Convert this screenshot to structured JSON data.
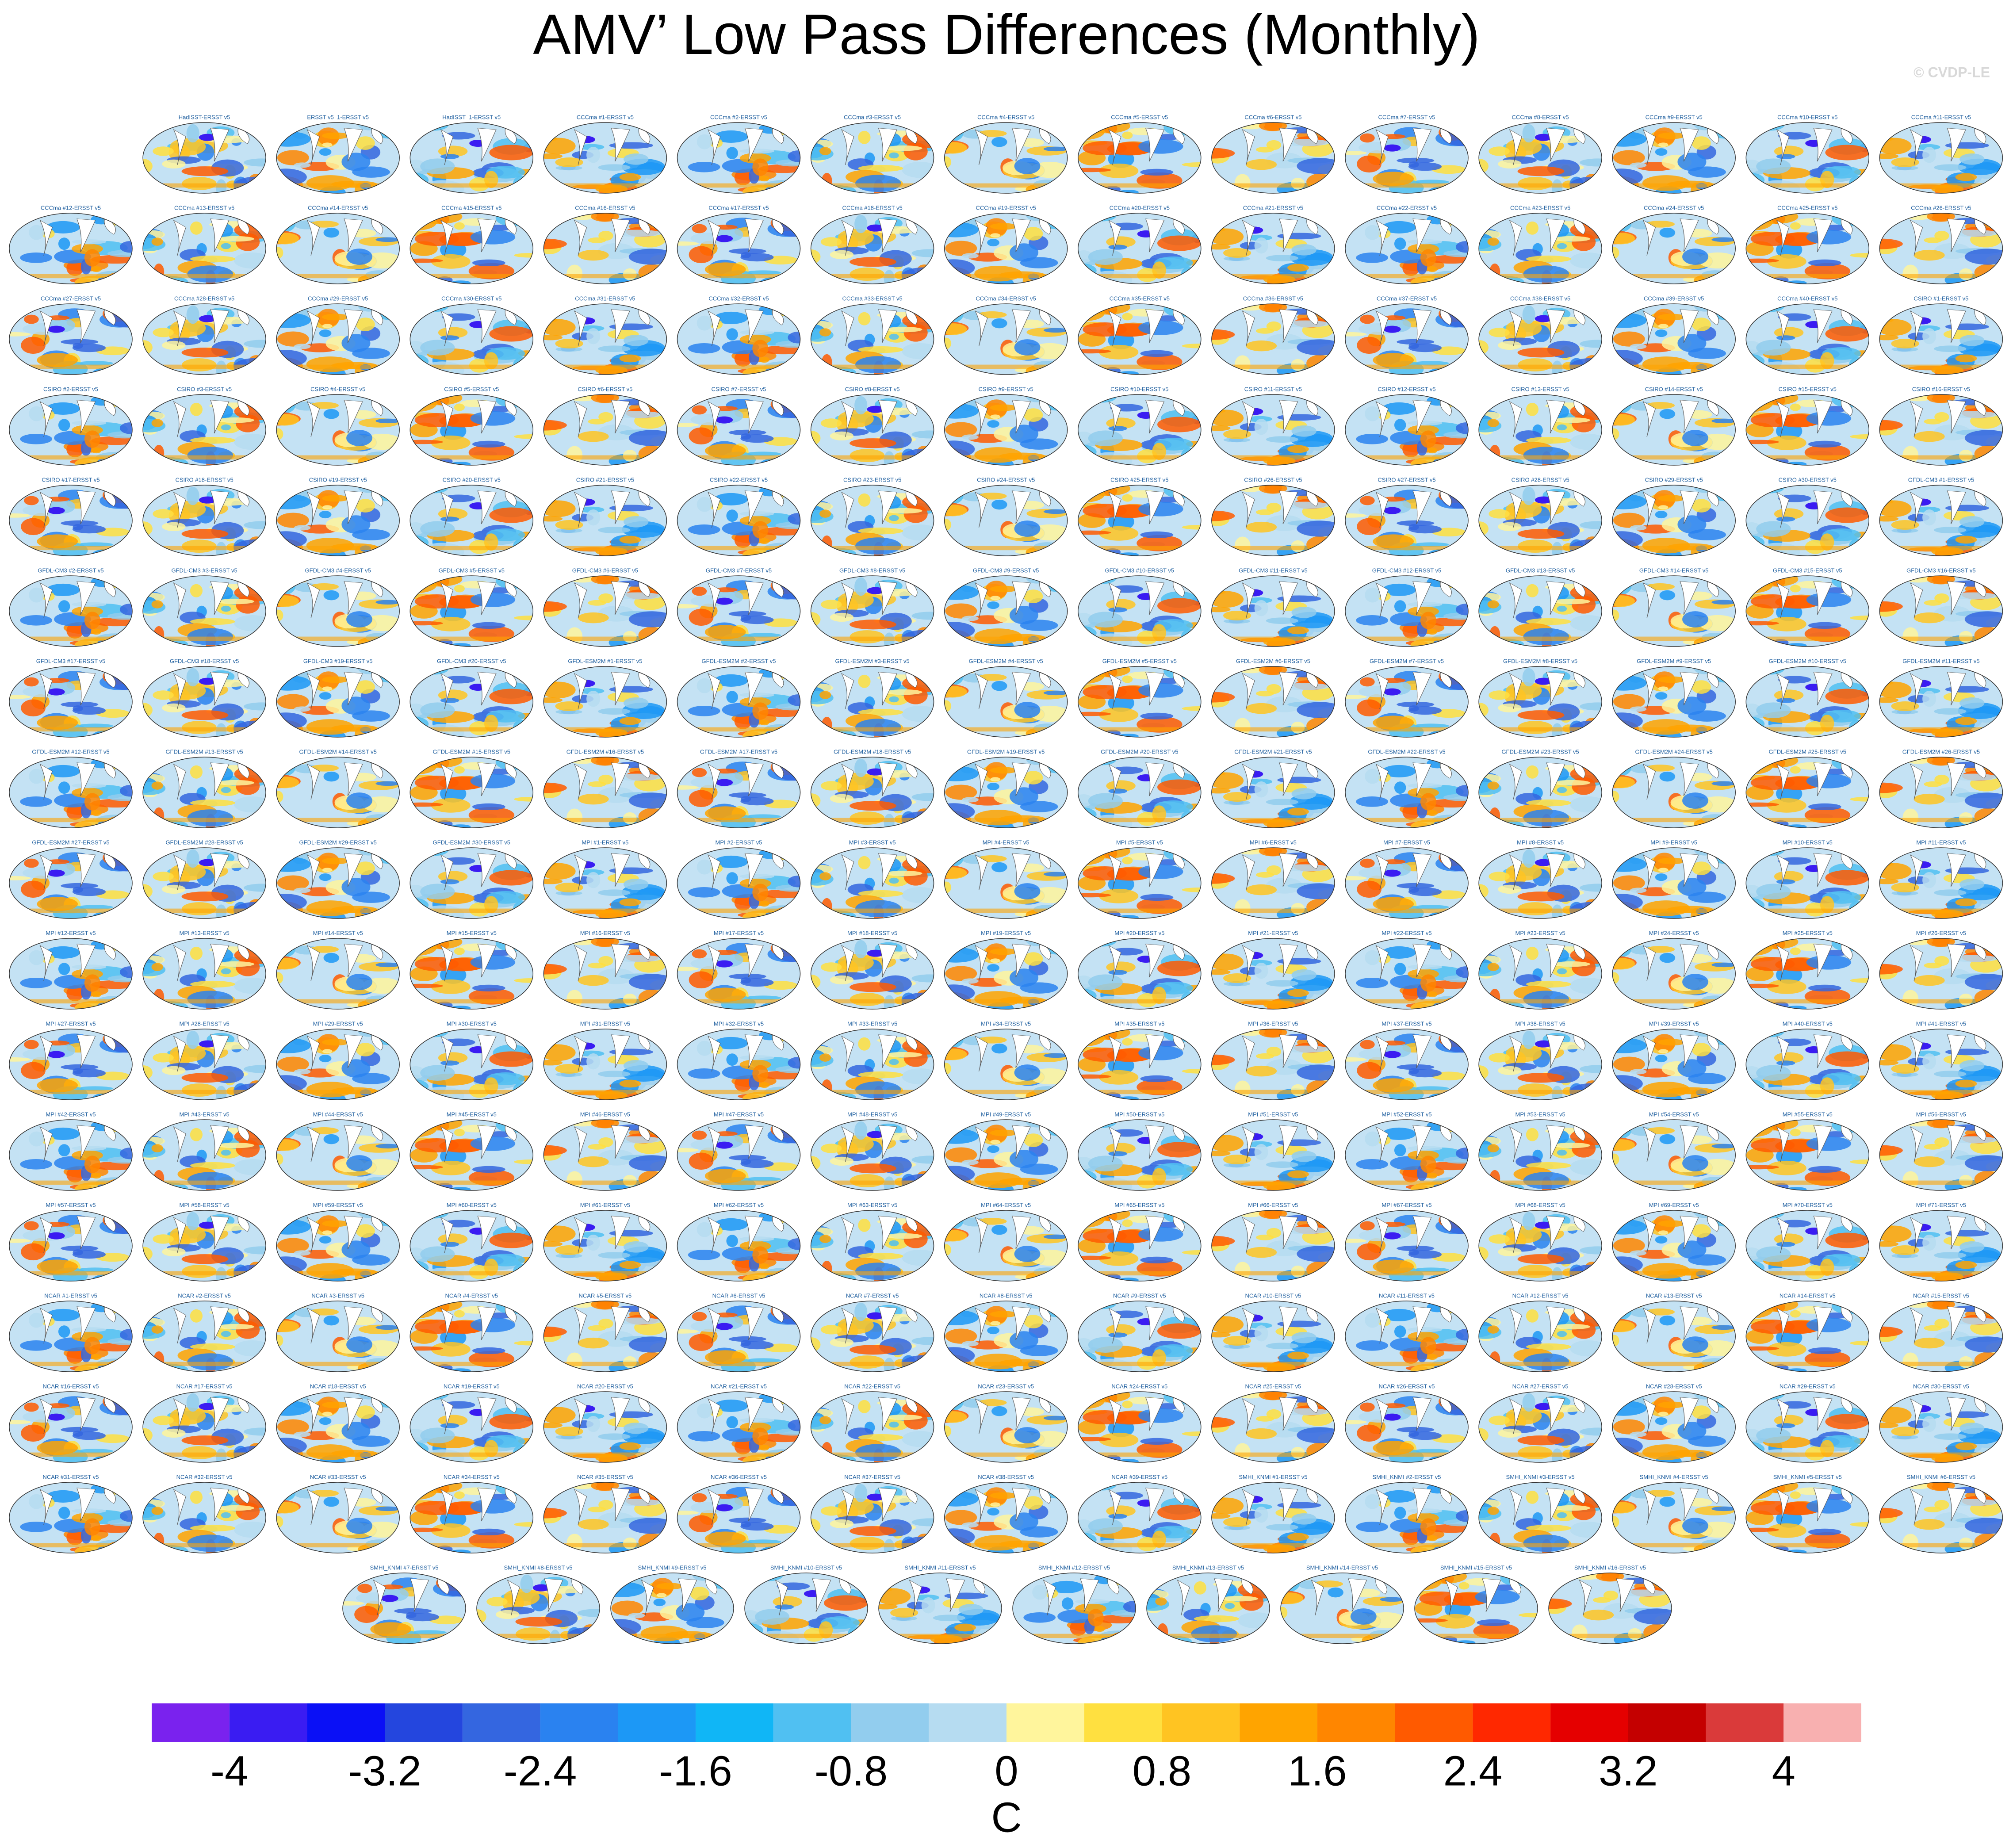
{
  "title": "AMV’ Low Pass Differences (Monthly)",
  "watermark": "© CVDP-LE",
  "panels": [
    "HadISST-ERSST v5",
    "ERSST v5_1-ERSST v5",
    "HadISST_1-ERSST v5",
    "CCCma #1-ERSST v5",
    "CCCma #2-ERSST v5",
    "CCCma #3-ERSST v5",
    "CCCma #4-ERSST v5",
    "CCCma #5-ERSST v5",
    "CCCma #6-ERSST v5",
    "CCCma #7-ERSST v5",
    "CCCma #8-ERSST v5",
    "CCCma #9-ERSST v5",
    "CCCma #10-ERSST v5",
    "CCCma #11-ERSST v5",
    "CCCma #12-ERSST v5",
    "CCCma #13-ERSST v5",
    "CCCma #14-ERSST v5",
    "CCCma #15-ERSST v5",
    "CCCma #16-ERSST v5",
    "CCCma #17-ERSST v5",
    "CCCma #18-ERSST v5",
    "CCCma #19-ERSST v5",
    "CCCma #20-ERSST v5",
    "CCCma #21-ERSST v5",
    "CCCma #22-ERSST v5",
    "CCCma #23-ERSST v5",
    "CCCma #24-ERSST v5",
    "CCCma #25-ERSST v5",
    "CCCma #26-ERSST v5",
    "CCCma #27-ERSST v5",
    "CCCma #28-ERSST v5",
    "CCCma #29-ERSST v5",
    "CCCma #30-ERSST v5",
    "CCCma #31-ERSST v5",
    "CCCma #32-ERSST v5",
    "CCCma #33-ERSST v5",
    "CCCma #34-ERSST v5",
    "CCCma #35-ERSST v5",
    "CCCma #36-ERSST v5",
    "CCCma #37-ERSST v5",
    "CCCma #38-ERSST v5",
    "CCCma #39-ERSST v5",
    "CCCma #40-ERSST v5",
    "CSIRO #1-ERSST v5",
    "CSIRO #2-ERSST v5",
    "CSIRO #3-ERSST v5",
    "CSIRO #4-ERSST v5",
    "CSIRO #5-ERSST v5",
    "CSIRO #6-ERSST v5",
    "CSIRO #7-ERSST v5",
    "CSIRO #8-ERSST v5",
    "CSIRO #9-ERSST v5",
    "CSIRO #10-ERSST v5",
    "CSIRO #11-ERSST v5",
    "CSIRO #12-ERSST v5",
    "CSIRO #13-ERSST v5",
    "CSIRO #14-ERSST v5",
    "CSIRO #15-ERSST v5",
    "CSIRO #16-ERSST v5",
    "CSIRO #17-ERSST v5",
    "CSIRO #18-ERSST v5",
    "CSIRO #19-ERSST v5",
    "CSIRO #20-ERSST v5",
    "CSIRO #21-ERSST v5",
    "CSIRO #22-ERSST v5",
    "CSIRO #23-ERSST v5",
    "CSIRO #24-ERSST v5",
    "CSIRO #25-ERSST v5",
    "CSIRO #26-ERSST v5",
    "CSIRO #27-ERSST v5",
    "CSIRO #28-ERSST v5",
    "CSIRO #29-ERSST v5",
    "CSIRO #30-ERSST v5",
    "GFDL-CM3 #1-ERSST v5",
    "GFDL-CM3 #2-ERSST v5",
    "GFDL-CM3 #3-ERSST v5",
    "GFDL-CM3 #4-ERSST v5",
    "GFDL-CM3 #5-ERSST v5",
    "GFDL-CM3 #6-ERSST v5",
    "GFDL-CM3 #7-ERSST v5",
    "GFDL-CM3 #8-ERSST v5",
    "GFDL-CM3 #9-ERSST v5",
    "GFDL-CM3 #10-ERSST v5",
    "GFDL-CM3 #11-ERSST v5",
    "GFDL-CM3 #12-ERSST v5",
    "GFDL-CM3 #13-ERSST v5",
    "GFDL-CM3 #14-ERSST v5",
    "GFDL-CM3 #15-ERSST v5",
    "GFDL-CM3 #16-ERSST v5",
    "GFDL-CM3 #17-ERSST v5",
    "GFDL-CM3 #18-ERSST v5",
    "GFDL-CM3 #19-ERSST v5",
    "GFDL-CM3 #20-ERSST v5",
    "GFDL-ESM2M #1-ERSST v5",
    "GFDL-ESM2M #2-ERSST v5",
    "GFDL-ESM2M #3-ERSST v5",
    "GFDL-ESM2M #4-ERSST v5",
    "GFDL-ESM2M #5-ERSST v5",
    "GFDL-ESM2M #6-ERSST v5",
    "GFDL-ESM2M #7-ERSST v5",
    "GFDL-ESM2M #8-ERSST v5",
    "GFDL-ESM2M #9-ERSST v5",
    "GFDL-ESM2M #10-ERSST v5",
    "GFDL-ESM2M #11-ERSST v5",
    "GFDL-ESM2M #12-ERSST v5",
    "GFDL-ESM2M #13-ERSST v5",
    "GFDL-ESM2M #14-ERSST v5",
    "GFDL-ESM2M #15-ERSST v5",
    "GFDL-ESM2M #16-ERSST v5",
    "GFDL-ESM2M #17-ERSST v5",
    "GFDL-ESM2M #18-ERSST v5",
    "GFDL-ESM2M #19-ERSST v5",
    "GFDL-ESM2M #20-ERSST v5",
    "GFDL-ESM2M #21-ERSST v5",
    "GFDL-ESM2M #22-ERSST v5",
    "GFDL-ESM2M #23-ERSST v5",
    "GFDL-ESM2M #24-ERSST v5",
    "GFDL-ESM2M #25-ERSST v5",
    "GFDL-ESM2M #26-ERSST v5",
    "GFDL-ESM2M #27-ERSST v5",
    "GFDL-ESM2M #28-ERSST v5",
    "GFDL-ESM2M #29-ERSST v5",
    "GFDL-ESM2M #30-ERSST v5",
    "MPI #1-ERSST v5",
    "MPI #2-ERSST v5",
    "MPI #3-ERSST v5",
    "MPI #4-ERSST v5",
    "MPI #5-ERSST v5",
    "MPI #6-ERSST v5",
    "MPI #7-ERSST v5",
    "MPI #8-ERSST v5",
    "MPI #9-ERSST v5",
    "MPI #10-ERSST v5",
    "MPI #11-ERSST v5",
    "MPI #12-ERSST v5",
    "MPI #13-ERSST v5",
    "MPI #14-ERSST v5",
    "MPI #15-ERSST v5",
    "MPI #16-ERSST v5",
    "MPI #17-ERSST v5",
    "MPI #18-ERSST v5",
    "MPI #19-ERSST v5",
    "MPI #20-ERSST v5",
    "MPI #21-ERSST v5",
    "MPI #22-ERSST v5",
    "MPI #23-ERSST v5",
    "MPI #24-ERSST v5",
    "MPI #25-ERSST v5",
    "MPI #26-ERSST v5",
    "MPI #27-ERSST v5",
    "MPI #28-ERSST v5",
    "MPI #29-ERSST v5",
    "MPI #30-ERSST v5",
    "MPI #31-ERSST v5",
    "MPI #32-ERSST v5",
    "MPI #33-ERSST v5",
    "MPI #34-ERSST v5",
    "MPI #35-ERSST v5",
    "MPI #36-ERSST v5",
    "MPI #37-ERSST v5",
    "MPI #38-ERSST v5",
    "MPI #39-ERSST v5",
    "MPI #40-ERSST v5",
    "MPI #41-ERSST v5",
    "MPI #42-ERSST v5",
    "MPI #43-ERSST v5",
    "MPI #44-ERSST v5",
    "MPI #45-ERSST v5",
    "MPI #46-ERSST v5",
    "MPI #47-ERSST v5",
    "MPI #48-ERSST v5",
    "MPI #49-ERSST v5",
    "MPI #50-ERSST v5",
    "MPI #51-ERSST v5",
    "MPI #52-ERSST v5",
    "MPI #53-ERSST v5",
    "MPI #54-ERSST v5",
    "MPI #55-ERSST v5",
    "MPI #56-ERSST v5",
    "MPI #57-ERSST v5",
    "MPI #58-ERSST v5",
    "MPI #59-ERSST v5",
    "MPI #60-ERSST v5",
    "MPI #61-ERSST v5",
    "MPI #62-ERSST v5",
    "MPI #63-ERSST v5",
    "MPI #64-ERSST v5",
    "MPI #65-ERSST v5",
    "MPI #66-ERSST v5",
    "MPI #67-ERSST v5",
    "MPI #68-ERSST v5",
    "MPI #69-ERSST v5",
    "MPI #70-ERSST v5",
    "MPI #71-ERSST v5",
    "NCAR #1-ERSST v5",
    "NCAR #2-ERSST v5",
    "NCAR #3-ERSST v5",
    "NCAR #4-ERSST v5",
    "NCAR #5-ERSST v5",
    "NCAR #6-ERSST v5",
    "NCAR #7-ERSST v5",
    "NCAR #8-ERSST v5",
    "NCAR #9-ERSST v5",
    "NCAR #10-ERSST v5",
    "NCAR #11-ERSST v5",
    "NCAR #12-ERSST v5",
    "NCAR #13-ERSST v5",
    "NCAR #14-ERSST v5",
    "NCAR #15-ERSST v5",
    "NCAR #16-ERSST v5",
    "NCAR #17-ERSST v5",
    "NCAR #18-ERSST v5",
    "NCAR #19-ERSST v5",
    "NCAR #20-ERSST v5",
    "NCAR #21-ERSST v5",
    "NCAR #22-ERSST v5",
    "NCAR #23-ERSST v5",
    "NCAR #24-ERSST v5",
    "NCAR #25-ERSST v5",
    "NCAR #26-ERSST v5",
    "NCAR #27-ERSST v5",
    "NCAR #28-ERSST v5",
    "NCAR #29-ERSST v5",
    "NCAR #30-ERSST v5",
    "NCAR #31-ERSST v5",
    "NCAR #32-ERSST v5",
    "NCAR #33-ERSST v5",
    "NCAR #34-ERSST v5",
    "NCAR #35-ERSST v5",
    "NCAR #36-ERSST v5",
    "NCAR #37-ERSST v5",
    "NCAR #38-ERSST v5",
    "NCAR #39-ERSST v5",
    "SMHI_KNMI #1-ERSST v5",
    "SMHI_KNMI #2-ERSST v5",
    "SMHI_KNMI #3-ERSST v5",
    "SMHI_KNMI #4-ERSST v5",
    "SMHI_KNMI #5-ERSST v5",
    "SMHI_KNMI #6-ERSST v5",
    "SMHI_KNMI #7-ERSST v5",
    "SMHI_KNMI #8-ERSST v5",
    "SMHI_KNMI #9-ERSST v5",
    "SMHI_KNMI #10-ERSST v5",
    "SMHI_KNMI #11-ERSST v5",
    "SMHI_KNMI #12-ERSST v5",
    "SMHI_KNMI #13-ERSST v5",
    "SMHI_KNMI #14-ERSST v5",
    "SMHI_KNMI #15-ERSST v5",
    "SMHI_KNMI #16-ERSST v5"
  ],
  "colorbar": {
    "label": "C",
    "levels": [
      -4,
      -3.6,
      -3.2,
      -2.8,
      -2.4,
      -2,
      -1.6,
      -1.2,
      -0.8,
      -0.4,
      0,
      0.4,
      0.8,
      1.2,
      1.6,
      2,
      2.4,
      2.8,
      3.2,
      3.6,
      4
    ],
    "colors": [
      "#7a22ee",
      "#3a1cf2",
      "#0a10f6",
      "#2446de",
      "#3466e0",
      "#2a82f0",
      "#1c98f6",
      "#10b6f6",
      "#50c0f2",
      "#92cdee",
      "#b6dcf1",
      "#fff59c",
      "#ffe040",
      "#ffc422",
      "#ffa400",
      "#ff8600",
      "#ff5a00",
      "#ff2800",
      "#e50000",
      "#c40000",
      "#da3a3a",
      "#f8b0b0"
    ],
    "ticks": [
      -4,
      -3.2,
      -2.4,
      -1.6,
      -0.8,
      0,
      0.8,
      1.6,
      2.4,
      3.2,
      4
    ]
  }
}
